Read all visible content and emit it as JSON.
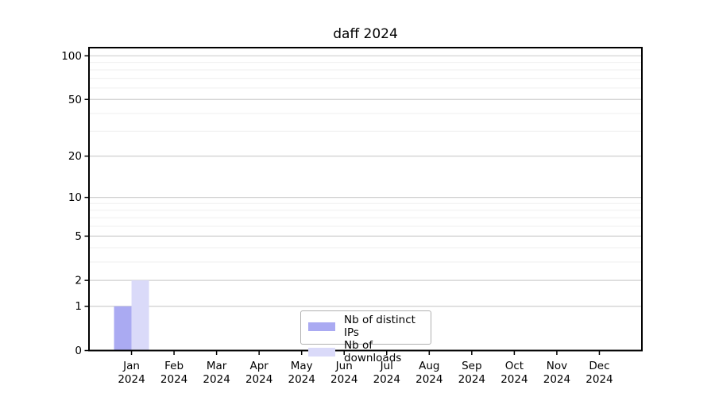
{
  "chart_data": {
    "type": "bar",
    "title": "daff 2024",
    "categories": [
      "Jan",
      "Feb",
      "Mar",
      "Apr",
      "May",
      "Jun",
      "Jul",
      "Aug",
      "Sep",
      "Oct",
      "Nov",
      "Dec"
    ],
    "category_year": "2024",
    "series": [
      {
        "name": "Nb of distinct IPs",
        "color": "#aaaaf2",
        "values": [
          1,
          0,
          0,
          0,
          0,
          0,
          0,
          0,
          0,
          0,
          0,
          0
        ]
      },
      {
        "name": "Nb of downloads",
        "color": "#dadaf9",
        "values": [
          2,
          0,
          0,
          0,
          0,
          0,
          0,
          0,
          0,
          0,
          0,
          0
        ]
      }
    ],
    "yscale": "log1p",
    "ylim": [
      0,
      100
    ],
    "yticks": [
      0,
      1,
      2,
      5,
      10,
      20,
      50,
      100
    ],
    "yticks_minor": [
      3,
      4,
      6,
      7,
      8,
      9,
      30,
      40,
      60,
      70,
      80,
      90
    ],
    "grid": true,
    "grid_major_color": "#cfcfcf",
    "grid_minor_color": "#efefef",
    "axis_color": "#000000",
    "tick_label_color": "#000000",
    "legend_position": "lower center"
  }
}
